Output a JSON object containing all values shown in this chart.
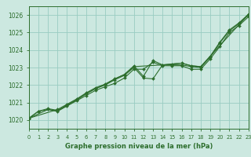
{
  "xlabel": "Graphe pression niveau de la mer (hPa)",
  "ylim": [
    1019.5,
    1026.5
  ],
  "xlim": [
    0,
    23
  ],
  "yticks": [
    1020,
    1021,
    1022,
    1023,
    1024,
    1025,
    1026
  ],
  "xticks": [
    0,
    1,
    2,
    3,
    4,
    5,
    6,
    7,
    8,
    9,
    10,
    11,
    12,
    13,
    14,
    15,
    16,
    17,
    18,
    19,
    20,
    21,
    22,
    23
  ],
  "bg_color": "#cce8e0",
  "grid_color": "#99ccc2",
  "line_color": "#2d6e2d",
  "line1_x": [
    0,
    1,
    2,
    3,
    4,
    5,
    6,
    7,
    8,
    9,
    10,
    11,
    12,
    13,
    14,
    15,
    16,
    17,
    18,
    19,
    20,
    21,
    22,
    23
  ],
  "line1_y": [
    1020.1,
    1020.5,
    1020.6,
    1020.5,
    1020.8,
    1021.1,
    1021.4,
    1021.7,
    1021.9,
    1022.1,
    1022.4,
    1022.9,
    1022.9,
    1023.3,
    1023.1,
    1023.1,
    1023.1,
    1022.9,
    1022.9,
    1023.5,
    1024.2,
    1025.0,
    1025.4,
    1025.9
  ],
  "line2_x": [
    0,
    1,
    2,
    3,
    4,
    5,
    6,
    7,
    8,
    9,
    10,
    11,
    12,
    13,
    14,
    15,
    16,
    17,
    18,
    19,
    20,
    21,
    22,
    23
  ],
  "line2_y": [
    1020.1,
    1020.5,
    1020.65,
    1020.55,
    1020.85,
    1021.15,
    1021.5,
    1021.8,
    1022.0,
    1022.3,
    1022.55,
    1023.0,
    1022.4,
    1022.35,
    1023.15,
    1023.15,
    1023.15,
    1023.05,
    1023.0,
    1023.6,
    1024.4,
    1025.1,
    1025.5,
    1026.0
  ],
  "line3_x": [
    0,
    3,
    4,
    5,
    6,
    7,
    8,
    9,
    10,
    11,
    12,
    13,
    14,
    15,
    16,
    17,
    18,
    19,
    20,
    21,
    22,
    23
  ],
  "line3_y": [
    1020.1,
    1020.6,
    1020.9,
    1021.2,
    1021.55,
    1021.85,
    1022.05,
    1022.35,
    1022.6,
    1023.1,
    1022.5,
    1023.4,
    1023.15,
    1023.2,
    1023.25,
    1023.1,
    1023.05,
    1023.65,
    1024.45,
    1025.15,
    1025.55,
    1026.05
  ],
  "line4_x": [
    0,
    2,
    3,
    4,
    5,
    6,
    7,
    8,
    9,
    10,
    11,
    14,
    15,
    16,
    17,
    18,
    19,
    23
  ],
  "line4_y": [
    1020.1,
    1020.6,
    1020.5,
    1020.85,
    1021.15,
    1021.5,
    1021.8,
    1022.05,
    1022.35,
    1022.6,
    1023.05,
    1023.15,
    1023.2,
    1023.25,
    1023.1,
    1023.05,
    1023.65,
    1026.05
  ]
}
